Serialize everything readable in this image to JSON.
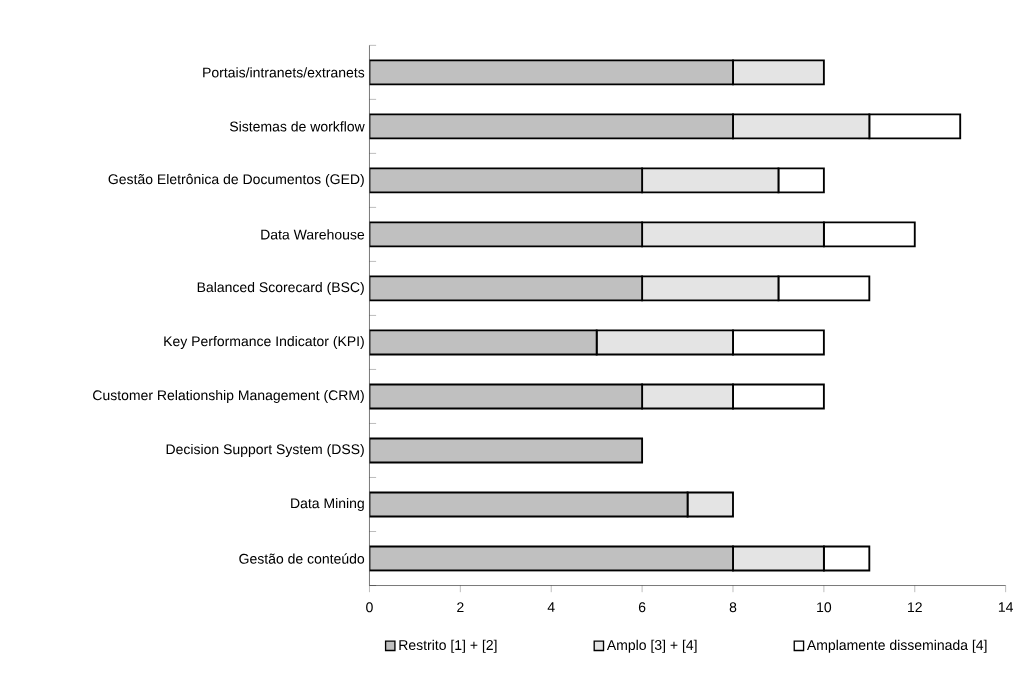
{
  "chart_data": {
    "type": "bar",
    "orientation": "horizontal",
    "stacked": true,
    "categories": [
      "Portais/intranets/extranets",
      "Sistemas de workflow",
      "Gestão Eletrônica de Documentos (GED)",
      "Data Warehouse",
      "Balanced Scorecard (BSC)",
      "Key Performance Indicator (KPI)",
      "Customer Relationship Management (CRM)",
      "Decision Support System (DSS)",
      "Data Mining",
      "Gestão de conteúdo"
    ],
    "series": [
      {
        "name": "Restrito [1] + [2]",
        "color": "#c0c0c0",
        "values": [
          8,
          8,
          6,
          6,
          6,
          5,
          6,
          6,
          7,
          8
        ]
      },
      {
        "name": "Amplo [3] + [4]",
        "color": "#e4e4e4",
        "values": [
          2,
          3,
          3,
          4,
          3,
          3,
          2,
          0,
          1,
          2
        ]
      },
      {
        "name": "Amplamente disseminada [4]",
        "color": "#ffffff",
        "values": [
          0,
          2,
          1,
          2,
          2,
          2,
          2,
          0,
          0,
          1
        ]
      }
    ],
    "xlim": [
      0,
      14
    ],
    "xticks": [
      0,
      2,
      4,
      6,
      8,
      10,
      12,
      14
    ],
    "grid": false,
    "legend": "bottom"
  }
}
